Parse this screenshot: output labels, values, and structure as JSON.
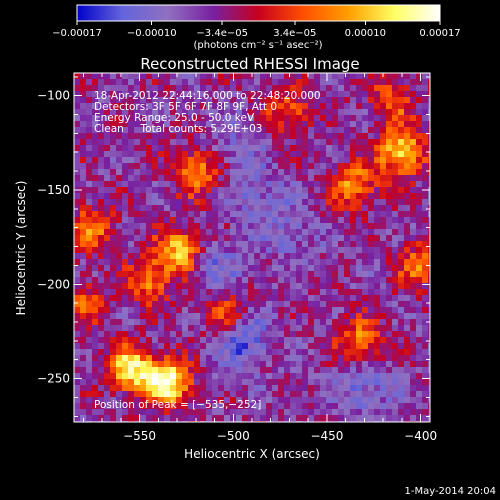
{
  "chart_data": {
    "type": "heatmap",
    "title": "Reconstructed RHESSI Image",
    "xlabel": "Heliocentric X (arcsec)",
    "ylabel": "Heliocentric Y (arcsec)",
    "xlim": [
      -585,
      -395
    ],
    "ylim": [
      -273,
      -88
    ],
    "x_ticks": [
      {
        "value": -550,
        "label": "−550"
      },
      {
        "value": -500,
        "label": "−500"
      },
      {
        "value": -450,
        "label": "−450"
      },
      {
        "value": -400,
        "label": "−400"
      }
    ],
    "y_ticks": [
      {
        "value": -100,
        "label": "−100"
      },
      {
        "value": -150,
        "label": "−150"
      },
      {
        "value": -200,
        "label": "−200"
      },
      {
        "value": -250,
        "label": "−250"
      }
    ],
    "colorbar": {
      "range": [
        -0.00017,
        0.00017
      ],
      "tick_labels": [
        {
          "value": -0.00017,
          "label": "−0.00017"
        },
        {
          "value": -0.0001,
          "label": "−0.00010"
        },
        {
          "value": -3.4e-05,
          "label": "−3.4e−05"
        },
        {
          "value": 3.4e-05,
          "label": "3.4e−05"
        },
        {
          "value": 0.0001,
          "label": "0.00010"
        },
        {
          "value": 0.00017,
          "label": "0.00017"
        }
      ],
      "units": "(photons cm⁻² s⁻¹ asec⁻²)",
      "colormap": [
        "#0000c8",
        "#6464dc",
        "#9070c0",
        "#7820a0",
        "#c8001e",
        "#ff5000",
        "#ffa000",
        "#ffff64",
        "#ffffff"
      ]
    },
    "hot_regions": [
      {
        "x": -535,
        "y": -252,
        "peak": 1.0
      },
      {
        "x": -555,
        "y": -245,
        "peak": 0.85
      },
      {
        "x": -545,
        "y": -198,
        "peak": 0.55
      },
      {
        "x": -528,
        "y": -182,
        "peak": 0.75
      },
      {
        "x": -520,
        "y": -140,
        "peak": 0.6
      },
      {
        "x": -505,
        "y": -215,
        "peak": 0.45
      },
      {
        "x": -410,
        "y": -130,
        "peak": 0.85
      },
      {
        "x": -435,
        "y": -148,
        "peak": 0.6
      },
      {
        "x": -400,
        "y": -190,
        "peak": 0.5
      },
      {
        "x": -432,
        "y": -230,
        "peak": 0.55
      },
      {
        "x": -470,
        "y": -108,
        "peak": 0.45
      },
      {
        "x": -575,
        "y": -170,
        "peak": 0.5
      },
      {
        "x": -580,
        "y": -210,
        "peak": 0.4
      },
      {
        "x": -415,
        "y": -102,
        "peak": 0.45
      }
    ],
    "cold_regions": [
      {
        "x": -495,
        "y": -230,
        "peak": 0.7
      },
      {
        "x": -510,
        "y": -190,
        "peak": 0.5
      },
      {
        "x": -485,
        "y": -155,
        "peak": 0.45
      },
      {
        "x": -500,
        "y": -125,
        "peak": 0.4
      },
      {
        "x": -430,
        "y": -255,
        "peak": 0.55
      },
      {
        "x": -470,
        "y": -175,
        "peak": 0.35
      }
    ]
  },
  "annotations": {
    "time_range": "18-Apr-2012 22:44:16.000 to 22:48:20.000",
    "detectors": "Detectors: 3F 5F 6F 7F 8F 9F, Att 0",
    "energy_range": "Energy Range: 25.0 - 50.0 keV",
    "method_counts": "Clean     Total counts: 5.29E+03",
    "peak_position": "Position of Peak = [−535,−252]"
  },
  "footer": {
    "timestamp": "1-May-2014 20:04"
  }
}
